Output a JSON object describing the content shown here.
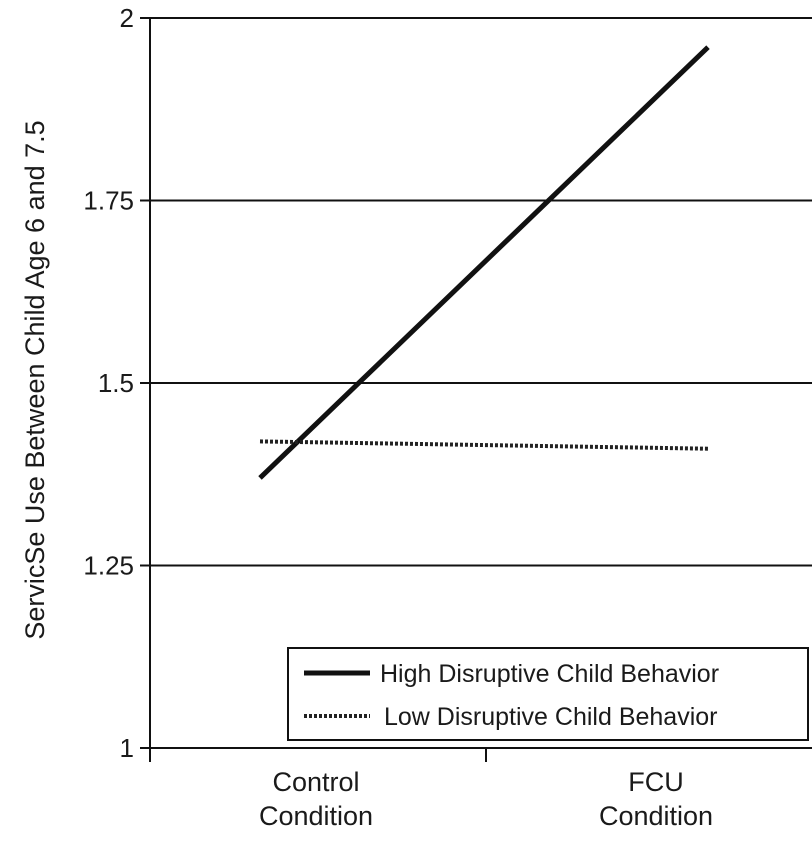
{
  "chart_data": {
    "type": "line",
    "title": "",
    "xlabel": "",
    "ylabel": "ServicSe Use Between Child Age 6 and 7.5",
    "categories": [
      [
        "Control",
        "Condition"
      ],
      [
        "FCU",
        "Condition"
      ]
    ],
    "ylim": [
      1,
      2
    ],
    "yticks": [
      1,
      1.25,
      1.5,
      1.75,
      2
    ],
    "ytick_labels": [
      "1",
      "1.25",
      "1.5",
      "1.75",
      "2"
    ],
    "grid": true,
    "legend_position": "bottom-right",
    "series": [
      {
        "name": "High Disruptive Child Behavior",
        "style": "solid",
        "color": "#111111",
        "values": [
          1.37,
          1.96
        ]
      },
      {
        "name": "Low Disruptive Child Behavior",
        "style": "dotted",
        "color": "#222222",
        "values": [
          1.42,
          1.41
        ]
      }
    ]
  }
}
